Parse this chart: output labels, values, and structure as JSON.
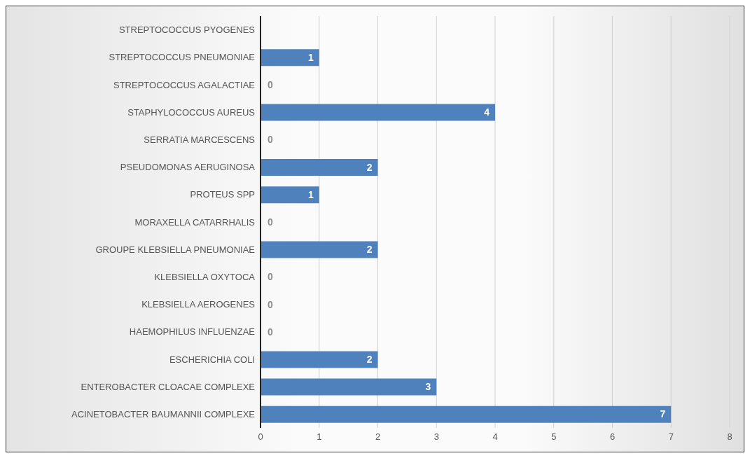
{
  "chart_data": {
    "type": "bar",
    "orientation": "horizontal",
    "categories": [
      "STREPTOCOCCUS PYOGENES",
      "STREPTOCOCCUS PNEUMONIAE",
      "STREPTOCOCCUS AGALACTIAE",
      "STAPHYLOCOCCUS AUREUS",
      "SERRATIA MARCESCENS",
      "PSEUDOMONAS AERUGINOSA",
      "PROTEUS SPP",
      "MORAXELLA CATARRHALIS",
      "GROUPE KLEBSIELLA PNEUMONIAE",
      "KLEBSIELLA OXYTOCA",
      "KLEBSIELLA AEROGENES",
      "HAEMOPHILUS INFLUENZAE",
      "ESCHERICHIA COLI",
      "ENTEROBACTER CLOACAE COMPLEXE",
      "ACINETOBACTER BAUMANNII COMPLEXE"
    ],
    "values": [
      0,
      1,
      0,
      4,
      0,
      2,
      1,
      0,
      2,
      0,
      0,
      0,
      2,
      3,
      7
    ],
    "value_labels": [
      null,
      "1",
      "0",
      "4",
      "0",
      "2",
      "1",
      "0",
      "2",
      "0",
      "0",
      "0",
      "2",
      "3",
      "7"
    ],
    "color": "#4f81bd",
    "xlim": [
      0,
      8
    ],
    "xticks": [
      0,
      1,
      2,
      3,
      4,
      5,
      6,
      7,
      8
    ],
    "grid": "x"
  }
}
